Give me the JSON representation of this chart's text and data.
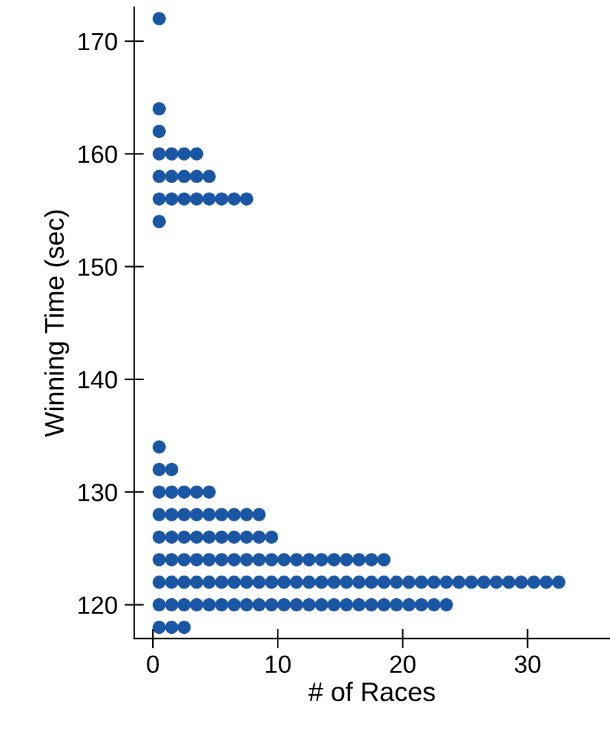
{
  "chart_data": {
    "type": "scatter",
    "xlabel": "# of Races",
    "ylabel": "Winning Time (sec)",
    "xlim": [
      -1.5,
      36.6
    ],
    "ylim": [
      117,
      173
    ],
    "xticks": [
      0,
      10,
      20,
      30
    ],
    "yticks": [
      120,
      130,
      140,
      150,
      160,
      170
    ],
    "grid": false,
    "marker": "circle",
    "series": [
      {
        "color": "#1a56a4",
        "x": [
          0.5
        ],
        "values": [
          172
        ]
      },
      {
        "color": "#1a56a4",
        "x": [
          0.5
        ],
        "values": [
          164
        ]
      },
      {
        "color": "#1a56a4",
        "x": [
          0.5
        ],
        "values": [
          162
        ]
      },
      {
        "color": "#1a56a4",
        "x": [
          0.5,
          1.5,
          2.5,
          3.5
        ],
        "values": [
          160,
          160,
          160,
          160
        ]
      },
      {
        "color": "#1a56a4",
        "x": [
          0.5,
          1.5,
          2.5,
          3.5,
          4.5
        ],
        "values": [
          158,
          158,
          158,
          158,
          158
        ]
      },
      {
        "color": "#1a56a4",
        "x": [
          0.5,
          1.5,
          2.5,
          3.5,
          4.5,
          5.5,
          6.5,
          7.5
        ],
        "values": [
          156,
          156,
          156,
          156,
          156,
          156,
          156,
          156
        ]
      },
      {
        "color": "#1a56a4",
        "x": [
          0.5
        ],
        "values": [
          154
        ]
      },
      {
        "color": "#1a56a4",
        "x": [
          0.5
        ],
        "values": [
          134
        ]
      },
      {
        "color": "#1a56a4",
        "x": [
          0.5,
          1.5
        ],
        "values": [
          132,
          132
        ]
      },
      {
        "color": "#1a56a4",
        "x": [
          0.5,
          1.5,
          2.5,
          3.5,
          4.5
        ],
        "values": [
          130,
          130,
          130,
          130,
          130
        ]
      },
      {
        "color": "#1a56a4",
        "x": [
          0.5,
          1.5,
          2.5,
          3.5,
          4.5,
          5.5,
          6.5,
          7.5,
          8.5
        ],
        "values": [
          128,
          128,
          128,
          128,
          128,
          128,
          128,
          128,
          128
        ]
      },
      {
        "color": "#1a56a4",
        "x": [
          0.5,
          1.5,
          2.5,
          3.5,
          4.5,
          5.5,
          6.5,
          7.5,
          8.5,
          9.5
        ],
        "values": [
          126,
          126,
          126,
          126,
          126,
          126,
          126,
          126,
          126,
          126
        ]
      },
      {
        "color": "#1a56a4",
        "x": [
          0.5,
          1.5,
          2.5,
          3.5,
          4.5,
          5.5,
          6.5,
          7.5,
          8.5,
          9.5,
          10.5,
          11.5,
          12.5,
          13.5,
          14.5,
          15.5,
          16.5,
          17.5,
          18.5
        ],
        "values": [
          124,
          124,
          124,
          124,
          124,
          124,
          124,
          124,
          124,
          124,
          124,
          124,
          124,
          124,
          124,
          124,
          124,
          124,
          124
        ]
      },
      {
        "color": "#1a56a4",
        "x": [
          0.5,
          1.5,
          2.5,
          3.5,
          4.5,
          5.5,
          6.5,
          7.5,
          8.5,
          9.5,
          10.5,
          11.5,
          12.5,
          13.5,
          14.5,
          15.5,
          16.5,
          17.5,
          18.5,
          19.5,
          20.5,
          21.5,
          22.5,
          23.5,
          24.5,
          25.5,
          26.5,
          27.5,
          28.5,
          29.5,
          30.5,
          31.5,
          32.5
        ],
        "values": [
          122,
          122,
          122,
          122,
          122,
          122,
          122,
          122,
          122,
          122,
          122,
          122,
          122,
          122,
          122,
          122,
          122,
          122,
          122,
          122,
          122,
          122,
          122,
          122,
          122,
          122,
          122,
          122,
          122,
          122,
          122,
          122,
          122
        ]
      },
      {
        "color": "#1a56a4",
        "x": [
          0.5,
          1.5,
          2.5,
          3.5,
          4.5,
          5.5,
          6.5,
          7.5,
          8.5,
          9.5,
          10.5,
          11.5,
          12.5,
          13.5,
          14.5,
          15.5,
          16.5,
          17.5,
          18.5,
          19.5,
          20.5,
          21.5,
          22.5,
          23.5
        ],
        "values": [
          120,
          120,
          120,
          120,
          120,
          120,
          120,
          120,
          120,
          120,
          120,
          120,
          120,
          120,
          120,
          120,
          120,
          120,
          120,
          120,
          120,
          120,
          120,
          120
        ]
      },
      {
        "color": "#1a56a4",
        "x": [
          0.5,
          1.5,
          2.5
        ],
        "values": [
          118,
          118,
          118
        ]
      }
    ]
  }
}
